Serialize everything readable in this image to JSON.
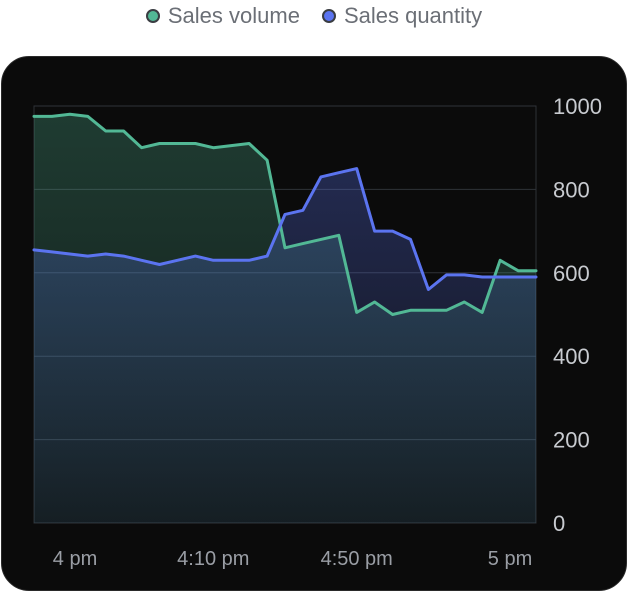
{
  "legend": [
    {
      "label": "Sales volume",
      "color": "#52b895"
    },
    {
      "label": "Sales quantity",
      "color": "#5b74f0"
    }
  ],
  "chart_data": {
    "type": "area",
    "xlabel": "",
    "ylabel": "",
    "ylim": [
      0,
      1000
    ],
    "yticks": [
      0,
      200,
      400,
      600,
      800,
      1000
    ],
    "y_axis_position": "right",
    "grid": true,
    "legend_position": "top-center",
    "x_tick_labels": [
      "4 pm",
      "4:10 pm",
      "4:50 pm",
      "5 pm"
    ],
    "x_tick_index": [
      2,
      10,
      18,
      26
    ],
    "series": [
      {
        "name": "Sales volume",
        "color": "#52b895",
        "values": [
          975,
          975,
          980,
          975,
          940,
          940,
          900,
          910,
          910,
          910,
          900,
          905,
          910,
          870,
          660,
          670,
          680,
          690,
          505,
          530,
          500,
          510,
          510,
          510,
          530,
          505,
          630,
          605,
          605
        ]
      },
      {
        "name": "Sales quantity",
        "color": "#5b74f0",
        "values": [
          655,
          650,
          645,
          640,
          645,
          640,
          630,
          620,
          630,
          640,
          630,
          630,
          630,
          640,
          740,
          750,
          830,
          840,
          850,
          700,
          700,
          680,
          560,
          595,
          595,
          590,
          590,
          590,
          590
        ]
      }
    ]
  }
}
